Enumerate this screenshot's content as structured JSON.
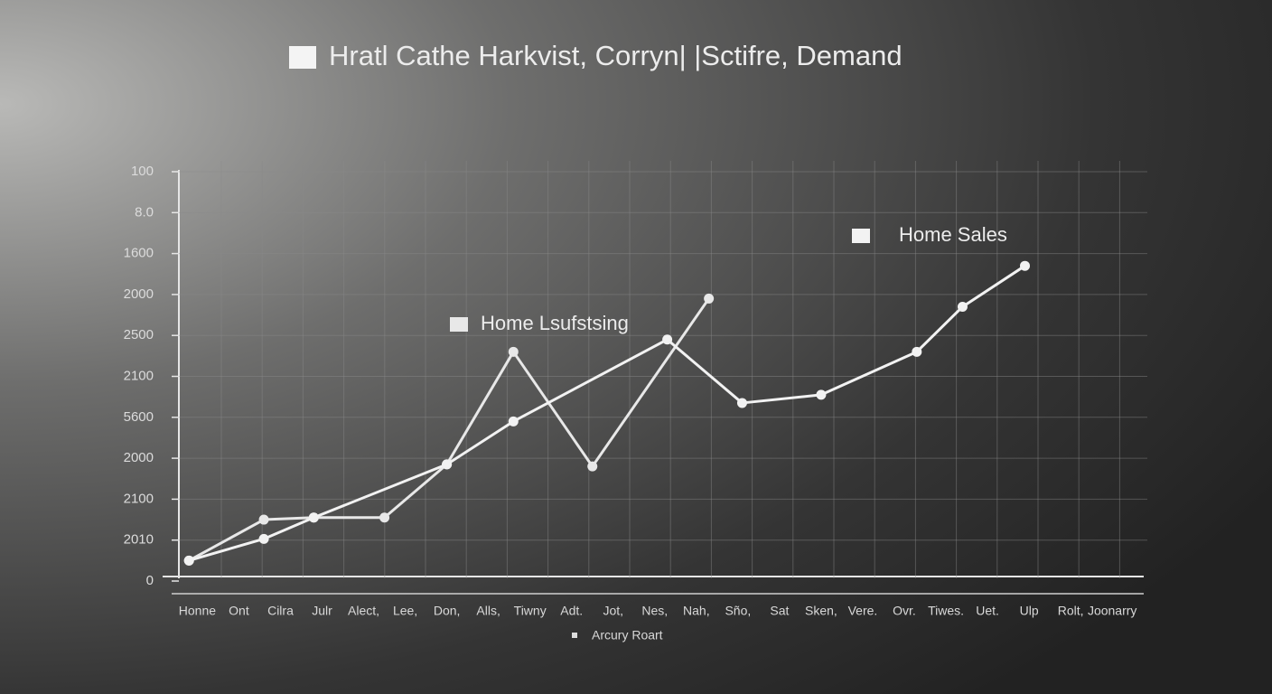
{
  "chart_data": {
    "type": "line",
    "title": "Hratl Cathe Harkvist, Corryn|  |Sctifre, Demand",
    "x_label": "Arcury Roart",
    "categories": [
      "Honne",
      "Ont",
      "Cilra",
      "Julr",
      "Alect,",
      "Lee,",
      "Don,",
      "Alls,",
      "Tiwny",
      "Adt.",
      "Jot,",
      "Nes,",
      "Nah,",
      "Sño,",
      "Sat",
      "Sken,",
      "Vere.",
      "Ovr.",
      "Tiwes.",
      "Uet.",
      "Ulp",
      "Rolt,",
      "Joonarry"
    ],
    "xlim": [
      -0.4,
      22.8
    ],
    "ylim": [
      0,
      100
    ],
    "yticks": [
      0,
      {
        "value": 10,
        "label": "2010"
      },
      {
        "value": 20,
        "label": "2100"
      },
      {
        "value": 30,
        "label": "2000"
      },
      {
        "value": 40,
        "label": "5600"
      },
      {
        "value": 50,
        "label": "2100"
      },
      {
        "value": 60,
        "label": "2500"
      },
      {
        "value": 70,
        "label": "2000"
      },
      {
        "value": 80,
        "label": "1600"
      },
      {
        "value": 90,
        "label": "8.0"
      },
      100
    ],
    "grid": true,
    "series": [
      {
        "name": "Home Lsufstsing",
        "color": "#e8e8e8",
        "x": [
          -0.2,
          1.6,
          2.8,
          4.5,
          6.0,
          7.6,
          9.5,
          12.3
        ],
        "values": [
          5,
          15,
          15.5,
          15.5,
          28.5,
          56,
          28,
          69
        ]
      },
      {
        "name": "Home Sales",
        "color": "#f2f2f2",
        "x": [
          -0.2,
          1.6,
          2.8,
          6.0,
          7.6,
          11.3,
          13.1,
          15.0,
          17.3,
          18.4,
          19.9
        ],
        "values": [
          5,
          10.3,
          15.5,
          28.5,
          39,
          59,
          43.5,
          45.5,
          56,
          67,
          77
        ]
      }
    ]
  }
}
